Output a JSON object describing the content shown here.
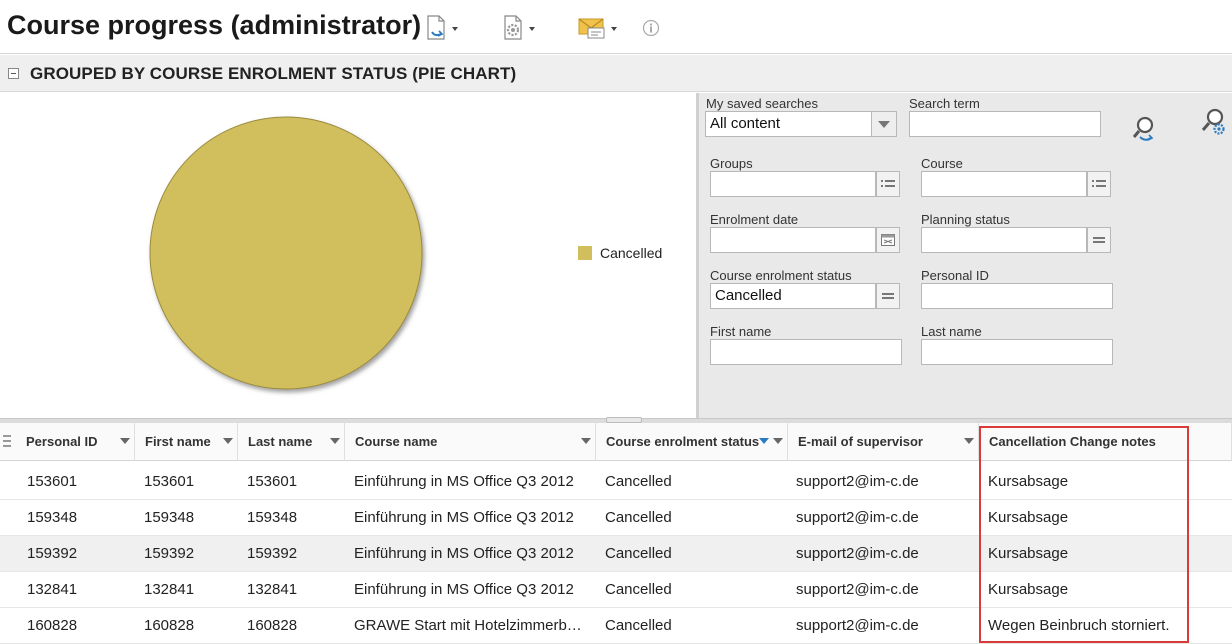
{
  "header": {
    "title": "Course progress (administrator)",
    "toolbar": [
      {
        "name": "export-icon",
        "has_menu": true
      },
      {
        "name": "settings-icon",
        "has_menu": true
      },
      {
        "name": "mail-icon",
        "has_menu": true
      },
      {
        "name": "info-icon",
        "has_menu": false
      }
    ]
  },
  "section": {
    "title": "GROUPED BY COURSE ENROLMENT STATUS (PIE CHART)"
  },
  "chart_data": {
    "type": "pie",
    "categories": [
      "Cancelled"
    ],
    "values": [
      100
    ],
    "colors": [
      "#d1be5d"
    ],
    "legend_position": "right"
  },
  "filters": {
    "saved_searches": {
      "label": "My saved searches",
      "value": "All content"
    },
    "search_term": {
      "label": "Search term",
      "value": ""
    },
    "groups": {
      "label": "Groups",
      "value": ""
    },
    "course": {
      "label": "Course",
      "value": ""
    },
    "enrolment_date": {
      "label": "Enrolment date",
      "value": ""
    },
    "planning_status": {
      "label": "Planning status",
      "value": ""
    },
    "course_enrolment_status": {
      "label": "Course enrolment status",
      "value": "Cancelled"
    },
    "personal_id": {
      "label": "Personal ID",
      "value": ""
    },
    "first_name": {
      "label": "First name",
      "value": ""
    },
    "last_name": {
      "label": "Last name",
      "value": ""
    }
  },
  "table": {
    "columns": [
      "Personal ID",
      "First name",
      "Last name",
      "Course name",
      "Course enrolment status",
      "E-mail of supervisor",
      "Cancellation Change notes"
    ],
    "rows": [
      [
        "153601",
        "153601",
        "153601",
        "Einführung in MS Office Q3 2012",
        "Cancelled",
        "support2@im-c.de",
        "Kursabsage"
      ],
      [
        "159348",
        "159348",
        "159348",
        "Einführung in MS Office Q3 2012",
        "Cancelled",
        "support2@im-c.de",
        "Kursabsage"
      ],
      [
        "159392",
        "159392",
        "159392",
        "Einführung in MS Office Q3 2012",
        "Cancelled",
        "support2@im-c.de",
        "Kursabsage"
      ],
      [
        "132841",
        "132841",
        "132841",
        "Einführung in MS Office Q3 2012",
        "Cancelled",
        "support2@im-c.de",
        "Kursabsage"
      ],
      [
        "160828",
        "160828",
        "160828",
        "GRAWE Start mit Hotelzimmerb…",
        "Cancelled",
        "support2@im-c.de",
        "Wegen Beinbruch storniert."
      ]
    ]
  }
}
